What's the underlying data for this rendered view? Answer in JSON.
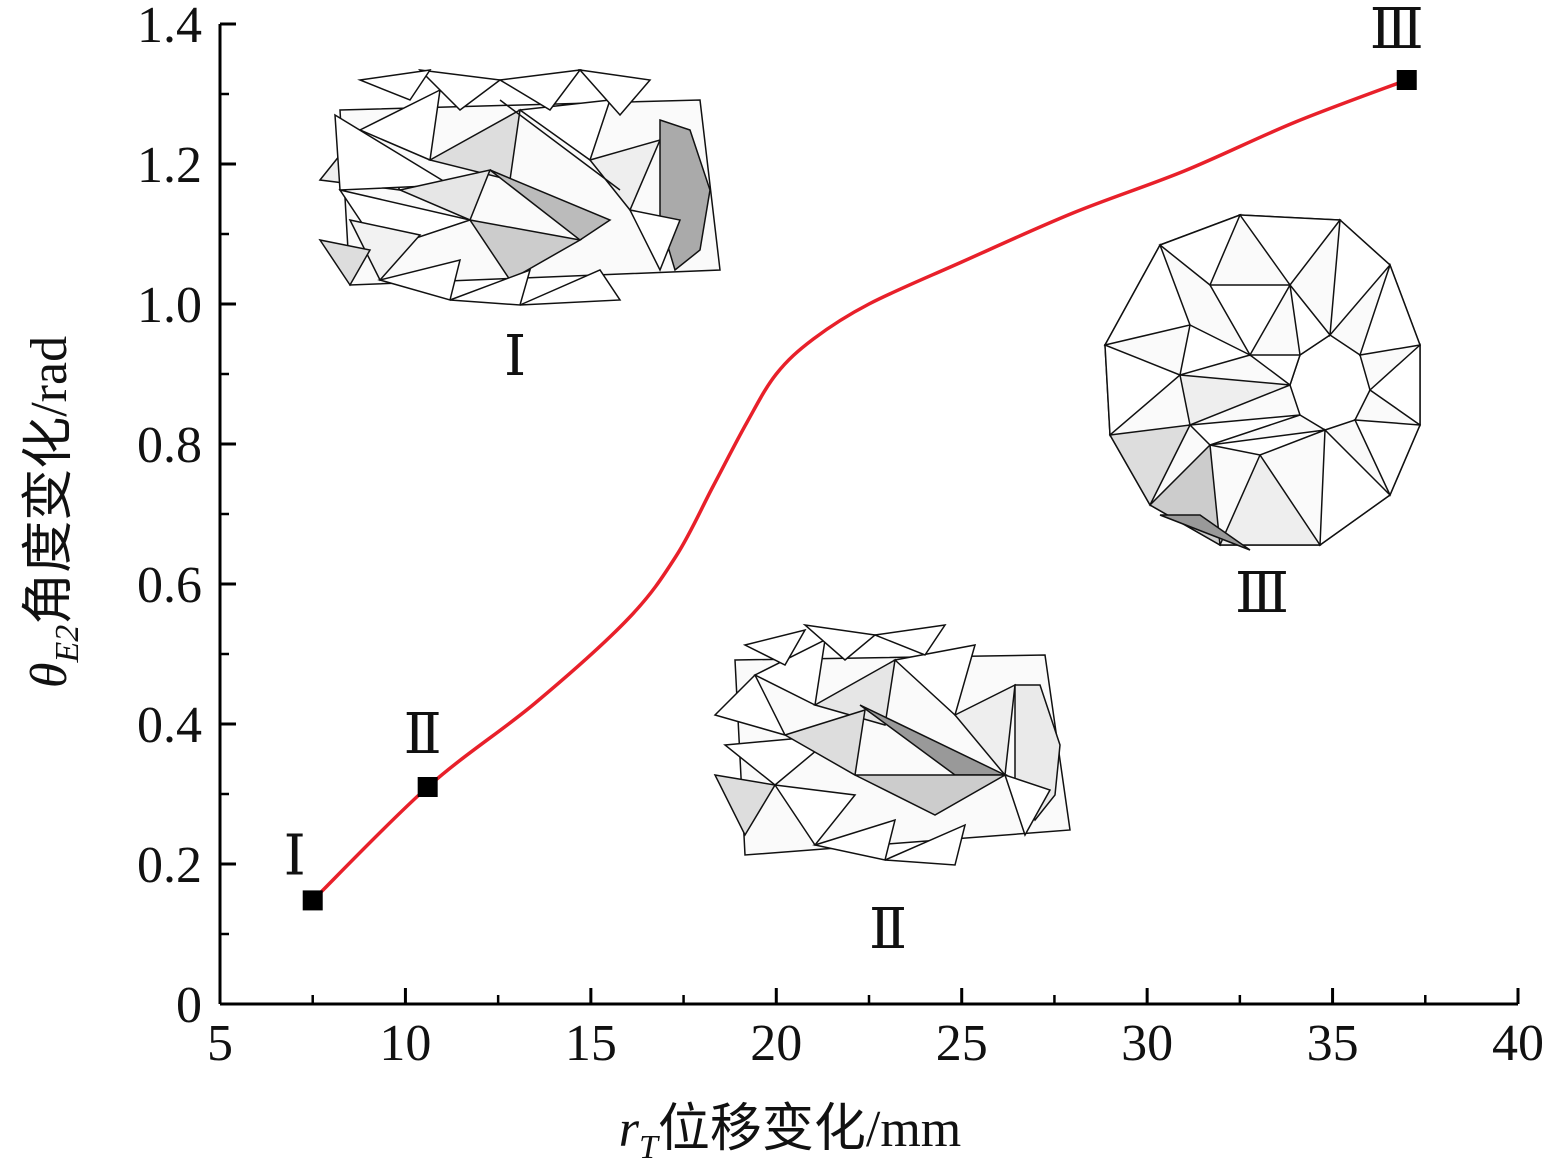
{
  "chart_data": {
    "type": "line",
    "xlabel": {
      "var": "r",
      "sub": "T",
      "text": "位移变化/mm"
    },
    "ylabel": {
      "var": "θ",
      "sub": "E2",
      "text": "角度变化/rad"
    },
    "xlim": [
      5,
      40
    ],
    "ylim": [
      0,
      1.4
    ],
    "x_ticks": [
      "5",
      "10",
      "15",
      "20",
      "25",
      "30",
      "35",
      "40"
    ],
    "y_ticks": [
      "0",
      "0.2",
      "0.4",
      "0.6",
      "0.8",
      "1.0",
      "1.2",
      "1.4"
    ],
    "line_color": "#e8202a",
    "marker_color": "#000000",
    "series": [
      {
        "x": [
          7.5,
          10.6,
          13.5,
          16.0,
          17.3,
          18.3,
          19.2,
          20.0,
          21.0,
          22.5,
          25.0,
          28.0,
          31.0,
          34.0,
          37.0
        ],
        "values": [
          0.148,
          0.31,
          0.43,
          0.55,
          0.64,
          0.74,
          0.83,
          0.9,
          0.95,
          1.0,
          1.06,
          1.13,
          1.19,
          1.26,
          1.32
        ]
      }
    ],
    "markers": [
      {
        "label": "Ⅰ",
        "x": 7.5,
        "y": 0.148
      },
      {
        "label": "Ⅱ",
        "x": 10.6,
        "y": 0.31
      },
      {
        "label": "Ⅲ",
        "x": 37.0,
        "y": 1.32
      }
    ],
    "insets": [
      {
        "label": "Ⅰ",
        "icon": "origami-cylinder-extended-icon"
      },
      {
        "label": "Ⅱ",
        "icon": "origami-cylinder-compressed-icon"
      },
      {
        "label": "Ⅲ",
        "icon": "origami-ring-flat-icon"
      }
    ]
  }
}
